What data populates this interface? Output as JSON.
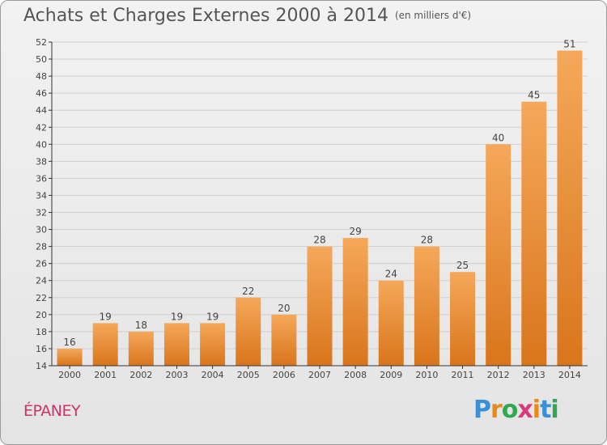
{
  "header": {
    "title": "Achats et Charges Externes 2000 à 2014",
    "subtitle": "(en milliers d'€)"
  },
  "place_name": "ÉPANEY",
  "logo": {
    "letters": [
      "P",
      "r",
      "o",
      "x",
      "i",
      "t",
      "i"
    ],
    "colors": [
      "#3a8fd6",
      "#e88a1a",
      "#2fa84f",
      "#d93a7a",
      "#e88a1a",
      "#3a8fd6",
      "#2fa84f"
    ]
  },
  "colors": {
    "bar_light": "#f5a85a",
    "bar_dark": "#d9751c",
    "grid": "#cfcfcf",
    "axis": "#333333"
  },
  "chart_data": {
    "type": "bar",
    "title": "Achats et Charges Externes 2000 à 2014",
    "subtitle": "(en milliers d'€)",
    "xlabel": "",
    "ylabel": "",
    "categories": [
      "2000",
      "2001",
      "2002",
      "2003",
      "2004",
      "2005",
      "2006",
      "2007",
      "2008",
      "2009",
      "2010",
      "2011",
      "2012",
      "2013",
      "2014"
    ],
    "values": [
      16,
      19,
      18,
      19,
      19,
      22,
      20,
      28,
      29,
      24,
      28,
      25,
      40,
      45,
      51
    ],
    "ylim": [
      14,
      52
    ],
    "yticks": [
      14,
      16,
      18,
      20,
      22,
      24,
      26,
      28,
      30,
      32,
      34,
      36,
      38,
      40,
      42,
      44,
      46,
      48,
      50,
      52
    ],
    "grid": true
  }
}
